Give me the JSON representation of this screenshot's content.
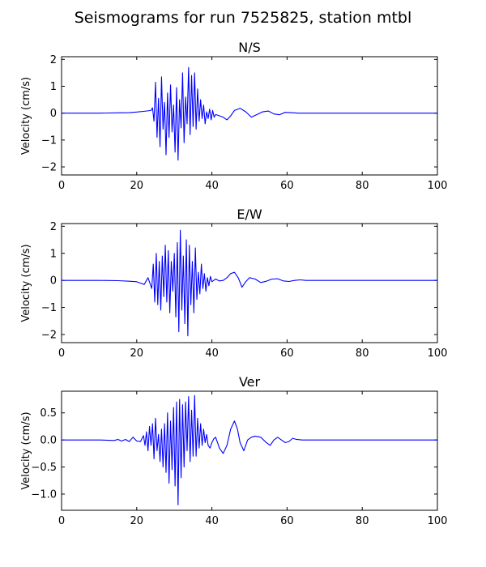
{
  "figure": {
    "title": "Seismograms for run 7525825, station mtbl"
  },
  "colors": {
    "trace": "#0000ff",
    "axes": "#000000",
    "background": "#ffffff"
  },
  "chart_data": [
    {
      "type": "line",
      "title": "N/S",
      "xlabel": "",
      "ylabel": "Velocity (cm/s)",
      "xlim": [
        0,
        100
      ],
      "ylim": [
        -2.3,
        2.1
      ],
      "xticks": [
        0,
        20,
        40,
        60,
        80,
        100
      ],
      "yticks": [
        -2,
        -1,
        0,
        1,
        2
      ],
      "ytick_labels": [
        "−2",
        "−1",
        "0",
        "1",
        "2"
      ],
      "grid": false,
      "series": [
        {
          "x": [
            0,
            10,
            15,
            18,
            20,
            22,
            23.8,
            24.2,
            24.6,
            25,
            25.4,
            25.8,
            26.2,
            26.6,
            27,
            27.4,
            27.8,
            28.2,
            28.6,
            29,
            29.4,
            29.8,
            30.2,
            30.6,
            31,
            31.4,
            31.8,
            32.2,
            32.6,
            33,
            33.4,
            33.8,
            34.2,
            34.6,
            35,
            35.4,
            35.8,
            36.2,
            36.6,
            37,
            37.4,
            37.8,
            38.2,
            38.6,
            39,
            39.4,
            39.8,
            40.2,
            40.6,
            41,
            42,
            43,
            44,
            45,
            46,
            47.5,
            49,
            50.5,
            52,
            53.5,
            55,
            56.5,
            58,
            59.5,
            61,
            63,
            66,
            70,
            80,
            90,
            100
          ],
          "y": [
            0,
            0,
            0.01,
            0.02,
            0.04,
            0.07,
            0.1,
            0.2,
            -0.3,
            1.15,
            -0.9,
            0.55,
            -1.25,
            1.35,
            -0.6,
            0.4,
            -1.55,
            0.75,
            -0.9,
            1.05,
            -0.7,
            0.3,
            -1.45,
            0.95,
            -1.75,
            0.5,
            -0.55,
            1.5,
            -1.1,
            0.6,
            -0.4,
            1.7,
            -0.8,
            1.4,
            -0.5,
            1.5,
            -0.6,
            0.9,
            -0.3,
            0.5,
            -0.2,
            0.3,
            -0.4,
            0.05,
            -0.2,
            0.15,
            -0.25,
            0.1,
            -0.15,
            -0.05,
            -0.1,
            -0.15,
            -0.25,
            -0.1,
            0.1,
            0.18,
            0.05,
            -0.15,
            -0.05,
            0.05,
            0.08,
            -0.03,
            -0.06,
            0.03,
            0.02,
            0,
            0,
            0,
            0,
            0,
            0
          ]
        }
      ]
    },
    {
      "type": "line",
      "title": "E/W",
      "xlabel": "",
      "ylabel": "Velocity (cm/s)",
      "xlim": [
        0,
        100
      ],
      "ylim": [
        -2.3,
        2.1
      ],
      "xticks": [
        0,
        20,
        40,
        60,
        80,
        100
      ],
      "yticks": [
        -2,
        -1,
        0,
        1,
        2
      ],
      "ytick_labels": [
        "−2",
        "−1",
        "0",
        "1",
        "2"
      ],
      "grid": false,
      "series": [
        {
          "x": [
            0,
            10,
            15,
            18,
            20,
            21,
            22,
            23,
            24,
            24.4,
            24.8,
            25.2,
            25.6,
            26,
            26.4,
            26.8,
            27.2,
            27.6,
            28,
            28.4,
            28.8,
            29.2,
            29.6,
            30,
            30.4,
            30.8,
            31.2,
            31.6,
            32,
            32.4,
            32.8,
            33.2,
            33.6,
            34,
            34.4,
            34.8,
            35.2,
            35.6,
            36,
            36.4,
            36.8,
            37.2,
            37.6,
            38,
            38.4,
            38.8,
            39.2,
            39.6,
            40,
            41,
            42,
            43,
            44,
            45,
            46,
            47,
            48,
            49,
            50,
            51.5,
            53,
            54.5,
            56,
            57.5,
            59,
            60.5,
            62,
            63.5,
            65,
            68,
            72,
            80,
            90,
            100
          ],
          "y": [
            0,
            0,
            -0.01,
            -0.03,
            -0.05,
            -0.1,
            -0.15,
            0.1,
            -0.3,
            0.6,
            -0.8,
            1.0,
            -0.9,
            0.7,
            -1.1,
            0.9,
            -0.6,
            1.3,
            -0.8,
            1.1,
            -1.2,
            0.7,
            -0.4,
            1.0,
            -1.35,
            1.4,
            -1.9,
            1.85,
            -1.1,
            0.9,
            -1.6,
            1.5,
            -2.05,
            1.3,
            -0.9,
            0.7,
            -1.2,
            1.2,
            -0.7,
            0.3,
            -0.5,
            0.6,
            -0.3,
            0.25,
            -0.4,
            0.1,
            -0.2,
            0.15,
            -0.05,
            0.05,
            -0.02,
            0,
            0.1,
            0.25,
            0.3,
            0.1,
            -0.25,
            -0.05,
            0.1,
            0.05,
            -0.08,
            -0.03,
            0.05,
            0.06,
            -0.02,
            -0.04,
            0,
            0.02,
            0,
            0,
            0,
            0,
            0,
            0
          ]
        }
      ]
    },
    {
      "type": "line",
      "title": "Ver",
      "xlabel": "",
      "ylabel": "Velocity (cm/s)",
      "xlim": [
        0,
        100
      ],
      "ylim": [
        -1.3,
        0.9
      ],
      "xticks": [
        0,
        20,
        40,
        60,
        80,
        100
      ],
      "yticks": [
        -1.0,
        -0.5,
        0.0,
        0.5
      ],
      "ytick_labels": [
        "−1.0",
        "−0.5",
        "0.0",
        "0.5"
      ],
      "grid": false,
      "series": [
        {
          "x": [
            0,
            10,
            14,
            15,
            16,
            17,
            18,
            19,
            20,
            21,
            21.8,
            22.2,
            22.6,
            23,
            23.4,
            23.8,
            24.2,
            24.6,
            25,
            25.4,
            25.8,
            26.2,
            26.6,
            27,
            27.4,
            27.8,
            28.2,
            28.6,
            29,
            29.4,
            29.8,
            30.2,
            30.6,
            31,
            31.4,
            31.8,
            32.2,
            32.6,
            33,
            33.4,
            33.8,
            34.2,
            34.6,
            35,
            35.4,
            35.8,
            36.2,
            36.6,
            37,
            37.4,
            37.8,
            38.2,
            38.6,
            39,
            39.5,
            40,
            40.5,
            41,
            41.5,
            42,
            43,
            44,
            45,
            46,
            46.8,
            47.5,
            48.5,
            49.5,
            50.5,
            51.5,
            53,
            54.5,
            55.5,
            56.5,
            57.5,
            58.5,
            59.5,
            60.5,
            61.5,
            62.5,
            64,
            66,
            70,
            80,
            90,
            100
          ],
          "y": [
            0,
            0,
            -0.01,
            0.01,
            -0.02,
            0.01,
            -0.03,
            0.05,
            -0.02,
            -0.03,
            0.08,
            -0.1,
            0.15,
            -0.2,
            0.25,
            -0.1,
            0.3,
            -0.35,
            0.4,
            -0.2,
            0.1,
            -0.4,
            0.2,
            -0.5,
            0.3,
            -0.6,
            0.5,
            -0.8,
            0.35,
            -0.55,
            0.6,
            -0.85,
            0.7,
            -1.2,
            0.75,
            -0.7,
            0.65,
            -0.5,
            0.7,
            -0.2,
            0.8,
            -0.4,
            0.55,
            -0.3,
            0.82,
            -0.3,
            0.4,
            -0.15,
            0.3,
            -0.1,
            0.2,
            -0.05,
            0.1,
            -0.1,
            -0.15,
            -0.05,
            0.02,
            0.05,
            -0.05,
            -0.15,
            -0.25,
            -0.1,
            0.2,
            0.35,
            0.2,
            -0.05,
            -0.2,
            0.0,
            0.05,
            0.07,
            0.05,
            -0.05,
            -0.1,
            0.0,
            0.05,
            0.0,
            -0.05,
            -0.03,
            0.03,
            0.01,
            0.0,
            0,
            0,
            0,
            0,
            0
          ]
        }
      ]
    }
  ]
}
